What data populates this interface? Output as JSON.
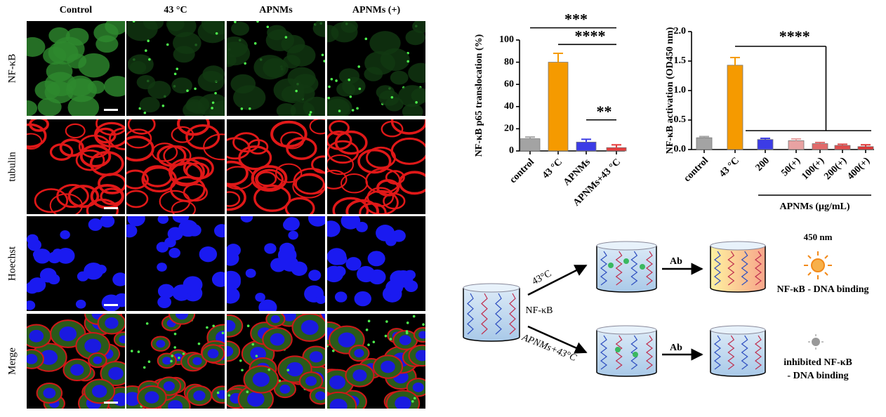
{
  "chart_data": [
    {
      "type": "bar",
      "ylabel": "NF-κB p65 translocation (%)",
      "categories": [
        "control",
        "43 °C",
        "APNMs",
        "APNMs+43 °C"
      ],
      "values": [
        11,
        80,
        8,
        3
      ],
      "errors": [
        1.5,
        8,
        2.5,
        2.5
      ],
      "colors": [
        "#a3a3a3",
        "#f59a00",
        "#3c3ce6",
        "#e63c3c"
      ],
      "ylim": [
        0,
        100
      ],
      "yticks": [
        0,
        20,
        40,
        60,
        80,
        100
      ],
      "annotations": [
        {
          "label": "***",
          "between": [
            0,
            3
          ],
          "y": 111
        },
        {
          "label": "****",
          "between": [
            1,
            3
          ],
          "y": 96
        },
        {
          "label": "**",
          "between": [
            2,
            3
          ],
          "y": 28
        }
      ]
    },
    {
      "type": "bar",
      "ylabel": "NF-κB activation (OD450 nm)",
      "categories": [
        "control",
        "43 °C",
        "200",
        "50(+)",
        "100(+)",
        "200(+)",
        "400(+)"
      ],
      "values": [
        0.2,
        1.43,
        0.17,
        0.15,
        0.1,
        0.07,
        0.05
      ],
      "errors": [
        0.02,
        0.13,
        0.02,
        0.03,
        0.02,
        0.02,
        0.03
      ],
      "colors": [
        "#a3a3a3",
        "#f59a00",
        "#3c3ce6",
        "#e8a2a2",
        "#e26a6a",
        "#e04c4c",
        "#e03434"
      ],
      "ylim": [
        0,
        2.0
      ],
      "yticks": [
        {
          "value": 0,
          "label": "0.0"
        },
        {
          "value": 0.5,
          "label": "0.5"
        },
        {
          "value": 1,
          "label": "1.0"
        },
        {
          "value": 1.5,
          "label": "1.5"
        },
        {
          "value": 2,
          "label": "2.0"
        }
      ],
      "annotations": [
        {
          "label": "****",
          "between": [
            1,
            6
          ],
          "y": 1.75,
          "group": [
            2,
            6
          ],
          "group_y": 0.32
        }
      ],
      "xgroup": {
        "label": "APNMs (μg/mL)",
        "between": [
          2,
          6
        ]
      }
    }
  ],
  "microscopy": {
    "columns": [
      "Control",
      "43 °C",
      "APNMs",
      "APNMs (+)"
    ],
    "rows": [
      "NF-κB",
      "tubulin",
      "Hoechst",
      "Merge"
    ],
    "row_colors": [
      "#2aa02a",
      "#e02020",
      "#2020e0",
      "#000000"
    ]
  },
  "diagram": {
    "heat": "43°C",
    "factor": "NF-κB",
    "treatment": "APNMs+43°C",
    "antibody_top": "Ab",
    "antibody_bottom": "Ab",
    "wavelength": "450 nm",
    "result_top": "NF-κB - DNA binding",
    "result_bottom": [
      "inhibited NF-κB",
      "- DNA binding"
    ]
  }
}
